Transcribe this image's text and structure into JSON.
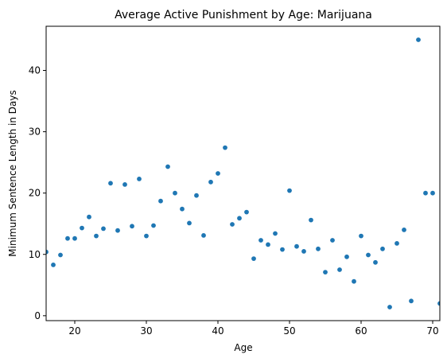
{
  "chart_data": {
    "type": "scatter",
    "title": "Average Active Punishment by Age: Marijuana",
    "xlabel": "Age",
    "ylabel": "Minimum Sentence Length in Days",
    "xlim": [
      16,
      71
    ],
    "ylim": [
      -0.8,
      47.2
    ],
    "xticks": [
      20,
      30,
      40,
      50,
      60,
      70
    ],
    "yticks": [
      0,
      10,
      20,
      30,
      40
    ],
    "grid": false,
    "marker_color": "#1f77b4",
    "points": [
      {
        "x": 16,
        "y": 10.4
      },
      {
        "x": 17,
        "y": 8.3
      },
      {
        "x": 18,
        "y": 9.9
      },
      {
        "x": 19,
        "y": 12.6
      },
      {
        "x": 20,
        "y": 12.6
      },
      {
        "x": 21,
        "y": 14.3
      },
      {
        "x": 22,
        "y": 16.1
      },
      {
        "x": 23,
        "y": 13.0
      },
      {
        "x": 24,
        "y": 14.2
      },
      {
        "x": 25,
        "y": 21.6
      },
      {
        "x": 26,
        "y": 13.9
      },
      {
        "x": 27,
        "y": 21.4
      },
      {
        "x": 28,
        "y": 14.6
      },
      {
        "x": 29,
        "y": 22.3
      },
      {
        "x": 30,
        "y": 13.0
      },
      {
        "x": 31,
        "y": 14.7
      },
      {
        "x": 32,
        "y": 18.7
      },
      {
        "x": 33,
        "y": 24.3
      },
      {
        "x": 34,
        "y": 20.0
      },
      {
        "x": 35,
        "y": 17.4
      },
      {
        "x": 36,
        "y": 15.1
      },
      {
        "x": 37,
        "y": 19.6
      },
      {
        "x": 38,
        "y": 13.1
      },
      {
        "x": 39,
        "y": 21.8
      },
      {
        "x": 40,
        "y": 23.2
      },
      {
        "x": 41,
        "y": 27.4
      },
      {
        "x": 42,
        "y": 14.9
      },
      {
        "x": 43,
        "y": 15.9
      },
      {
        "x": 44,
        "y": 16.9
      },
      {
        "x": 45,
        "y": 9.3
      },
      {
        "x": 46,
        "y": 12.3
      },
      {
        "x": 47,
        "y": 11.6
      },
      {
        "x": 48,
        "y": 13.4
      },
      {
        "x": 49,
        "y": 10.8
      },
      {
        "x": 50,
        "y": 20.4
      },
      {
        "x": 51,
        "y": 11.3
      },
      {
        "x": 52,
        "y": 10.5
      },
      {
        "x": 53,
        "y": 15.6
      },
      {
        "x": 54,
        "y": 10.9
      },
      {
        "x": 55,
        "y": 7.1
      },
      {
        "x": 56,
        "y": 12.3
      },
      {
        "x": 57,
        "y": 7.5
      },
      {
        "x": 58,
        "y": 9.6
      },
      {
        "x": 59,
        "y": 5.6
      },
      {
        "x": 60,
        "y": 13.0
      },
      {
        "x": 61,
        "y": 9.9
      },
      {
        "x": 62,
        "y": 8.7
      },
      {
        "x": 63,
        "y": 10.9
      },
      {
        "x": 64,
        "y": 1.4
      },
      {
        "x": 65,
        "y": 11.8
      },
      {
        "x": 66,
        "y": 14.0
      },
      {
        "x": 67,
        "y": 2.4
      },
      {
        "x": 68,
        "y": 45.0
      },
      {
        "x": 69,
        "y": 20.0
      },
      {
        "x": 70,
        "y": 20.0
      },
      {
        "x": 71,
        "y": 2.0
      }
    ]
  }
}
